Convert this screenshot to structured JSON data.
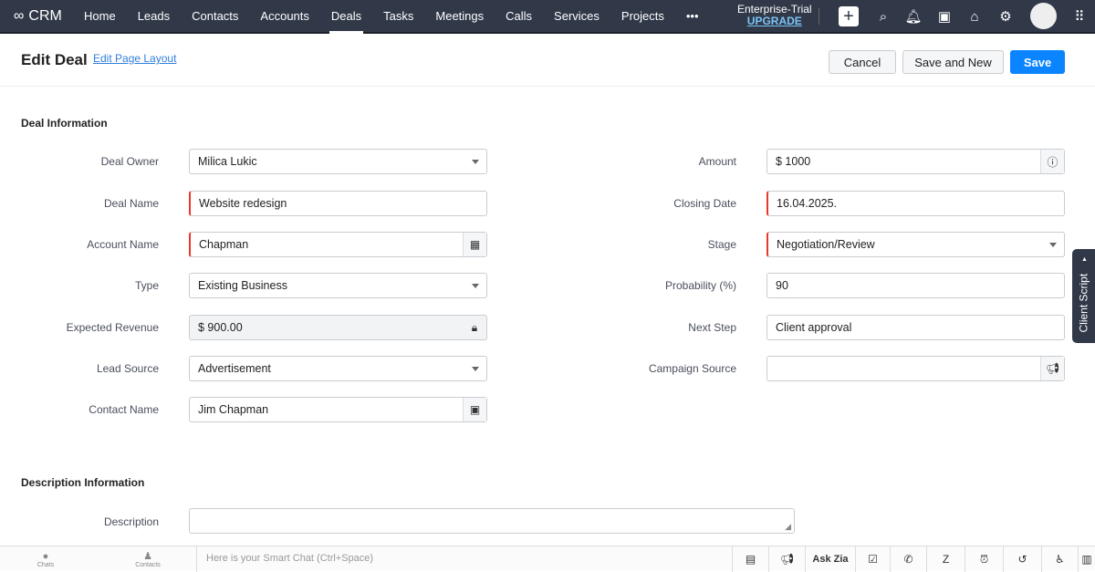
{
  "topbar": {
    "logo": "CRM",
    "nav": [
      "Home",
      "Leads",
      "Contacts",
      "Accounts",
      "Deals",
      "Tasks",
      "Meetings",
      "Calls",
      "Services",
      "Projects",
      "•••"
    ],
    "active": "Deals",
    "trial": "Enterprise-Trial",
    "upgrade": "UPGRADE"
  },
  "header": {
    "title": "Edit Deal",
    "edit_layout": "Edit Page Layout",
    "cancel": "Cancel",
    "save_new": "Save and New",
    "save": "Save"
  },
  "sections": {
    "deal": "Deal Information",
    "description": "Description Information"
  },
  "left_fields": [
    {
      "label": "Deal Owner",
      "value": "Milica Lukic",
      "kind": "select"
    },
    {
      "label": "Deal Name",
      "value": "Website redesign",
      "kind": "text",
      "required": true
    },
    {
      "label": "Account Name",
      "value": "Chapman",
      "kind": "lookup",
      "required": true,
      "icon": "building-icon"
    },
    {
      "label": "Type",
      "value": "Existing Business",
      "kind": "select"
    },
    {
      "label": "Expected Revenue",
      "value": "$ 900.00",
      "kind": "readonly",
      "icon": "lock-icon"
    },
    {
      "label": "Lead Source",
      "value": "Advertisement",
      "kind": "select"
    },
    {
      "label": "Contact Name",
      "value": "Jim Chapman",
      "kind": "lookup",
      "icon": "contact-card-icon"
    }
  ],
  "right_fields": [
    {
      "label": "Amount",
      "value": "$ 1000",
      "kind": "text",
      "icon": "info-icon"
    },
    {
      "label": "Closing Date",
      "value": "16.04.2025.",
      "kind": "text",
      "required": true
    },
    {
      "label": "Stage",
      "value": "Negotiation/Review",
      "kind": "select",
      "required": true
    },
    {
      "label": "Probability (%)",
      "value": "90",
      "kind": "text"
    },
    {
      "label": "Next Step",
      "value": "Client approval",
      "kind": "text"
    },
    {
      "label": "Campaign Source",
      "value": "",
      "kind": "lookup",
      "icon": "megaphone-icon"
    }
  ],
  "description": {
    "label": "Description",
    "value": ""
  },
  "client_script": "Client Script",
  "bottombar": {
    "chats": "Chats",
    "contacts": "Contacts",
    "smart_chat_placeholder": "Here is your Smart Chat (Ctrl+Space)",
    "ask_zia": "Ask Zia"
  }
}
